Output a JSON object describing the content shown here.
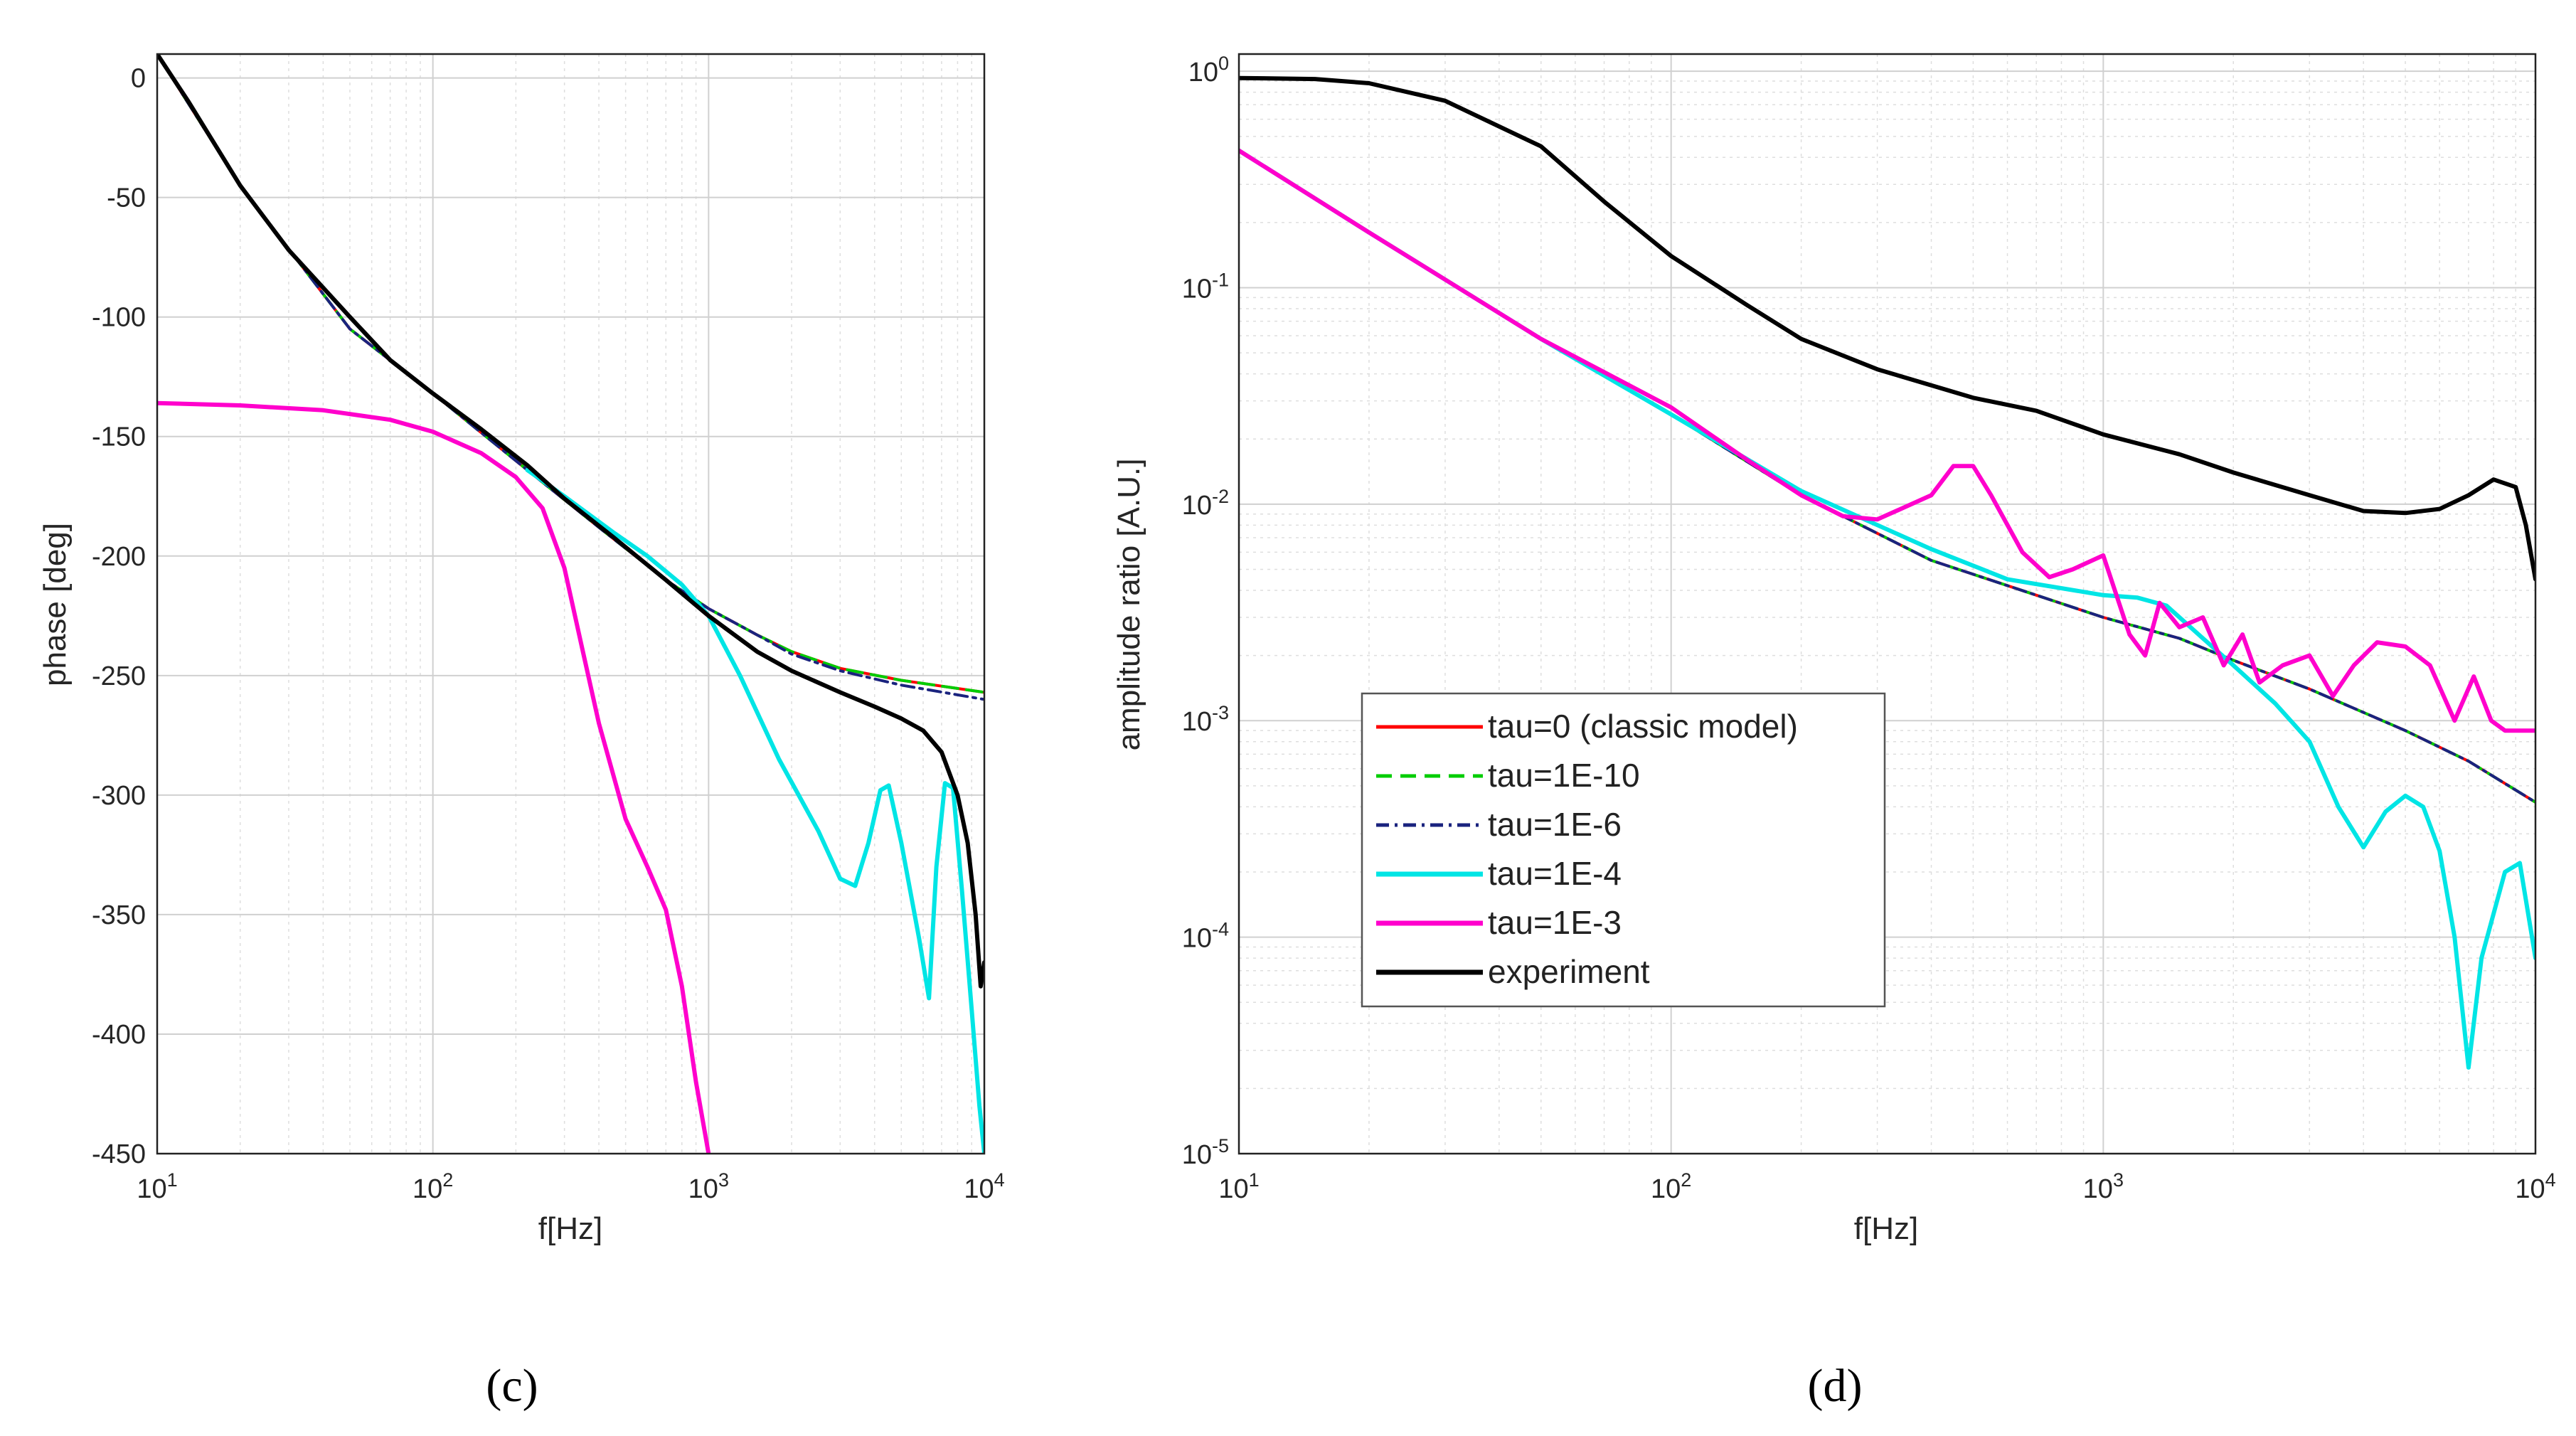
{
  "chart_data": [
    {
      "type": "line",
      "panel_label": "(c)",
      "xscale": "log",
      "xlim": [
        10,
        10000
      ],
      "ylim": [
        -450,
        10
      ],
      "xlabel": "f[Hz]",
      "ylabel": "phase [deg]",
      "grid": true,
      "x_tick_labels": [
        {
          "base": "10",
          "exp": "1"
        },
        {
          "base": "10",
          "exp": "2"
        },
        {
          "base": "10",
          "exp": "3"
        },
        {
          "base": "10",
          "exp": "4"
        }
      ],
      "y_ticks": [
        0,
        -50,
        -100,
        -150,
        -200,
        -250,
        -300,
        -350,
        -400,
        -450
      ],
      "series": [
        {
          "name": "tau=0 (classic model)",
          "color": "#ff0000",
          "dash": "solid",
          "points": [
            [
              10,
              10
            ],
            [
              20,
              -45
            ],
            [
              50,
              -105
            ],
            [
              100,
              -132
            ],
            [
              220,
              -164
            ],
            [
              400,
              -188
            ],
            [
              700,
              -210
            ],
            [
              1000,
              -222
            ],
            [
              1500,
              -233
            ],
            [
              2000,
              -240
            ],
            [
              3000,
              -247
            ],
            [
              5000,
              -252
            ],
            [
              10000,
              -257
            ]
          ]
        },
        {
          "name": "tau=1E-10",
          "color": "#00cc00",
          "dash": "dashed",
          "points": [
            [
              10,
              10
            ],
            [
              20,
              -45
            ],
            [
              50,
              -105
            ],
            [
              100,
              -132
            ],
            [
              220,
              -164
            ],
            [
              400,
              -188
            ],
            [
              700,
              -210
            ],
            [
              1000,
              -222
            ],
            [
              1500,
              -233
            ],
            [
              2000,
              -240
            ],
            [
              3000,
              -247
            ],
            [
              5000,
              -252
            ],
            [
              10000,
              -257
            ]
          ]
        },
        {
          "name": "tau=1E-6",
          "color": "#1a237e",
          "dash": "dashdot",
          "points": [
            [
              10,
              10
            ],
            [
              20,
              -45
            ],
            [
              50,
              -105
            ],
            [
              100,
              -132
            ],
            [
              220,
              -164
            ],
            [
              400,
              -188
            ],
            [
              700,
              -210
            ],
            [
              1000,
              -222
            ],
            [
              1500,
              -233
            ],
            [
              2000,
              -241
            ],
            [
              3000,
              -248
            ],
            [
              5000,
              -254
            ],
            [
              10000,
              -260
            ]
          ]
        },
        {
          "name": "tau=1E-4",
          "color": "#00e5e5",
          "dash": "solid",
          "points": [
            [
              220,
              -164
            ],
            [
              300,
              -175
            ],
            [
              450,
              -190
            ],
            [
              600,
              -200
            ],
            [
              800,
              -212
            ],
            [
              1000,
              -225
            ],
            [
              1300,
              -250
            ],
            [
              1800,
              -285
            ],
            [
              2500,
              -315
            ],
            [
              3000,
              -335
            ],
            [
              3400,
              -338
            ],
            [
              3800,
              -320
            ],
            [
              4200,
              -298
            ],
            [
              4500,
              -296
            ],
            [
              5000,
              -320
            ],
            [
              5800,
              -360
            ],
            [
              6300,
              -385
            ],
            [
              6700,
              -330
            ],
            [
              7200,
              -295
            ],
            [
              7700,
              -297
            ],
            [
              8300,
              -340
            ],
            [
              9000,
              -390
            ],
            [
              9600,
              -430
            ],
            [
              10000,
              -450
            ]
          ]
        },
        {
          "name": "tau=1E-3",
          "color": "#ff00cc",
          "dash": "solid",
          "points": [
            [
              10,
              -136
            ],
            [
              20,
              -137
            ],
            [
              40,
              -139
            ],
            [
              70,
              -143
            ],
            [
              100,
              -148
            ],
            [
              150,
              -157
            ],
            [
              200,
              -167
            ],
            [
              250,
              -180
            ],
            [
              300,
              -205
            ],
            [
              350,
              -240
            ],
            [
              400,
              -270
            ],
            [
              500,
              -310
            ],
            [
              600,
              -330
            ],
            [
              700,
              -348
            ],
            [
              800,
              -380
            ],
            [
              900,
              -420
            ],
            [
              1000,
              -450
            ]
          ]
        },
        {
          "name": "experiment",
          "color": "#000000",
          "dash": "solid",
          "points": [
            [
              10,
              10
            ],
            [
              13,
              -10
            ],
            [
              20,
              -45
            ],
            [
              30,
              -72
            ],
            [
              50,
              -100
            ],
            [
              70,
              -118
            ],
            [
              100,
              -132
            ],
            [
              150,
              -147
            ],
            [
              220,
              -162
            ],
            [
              300,
              -176
            ],
            [
              450,
              -192
            ],
            [
              700,
              -210
            ],
            [
              1000,
              -225
            ],
            [
              1500,
              -240
            ],
            [
              2000,
              -248
            ],
            [
              3000,
              -257
            ],
            [
              4000,
              -263
            ],
            [
              5000,
              -268
            ],
            [
              6000,
              -273
            ],
            [
              7000,
              -282
            ],
            [
              8000,
              -300
            ],
            [
              8700,
              -320
            ],
            [
              9300,
              -350
            ],
            [
              9700,
              -380
            ],
            [
              10000,
              -370
            ]
          ]
        }
      ]
    },
    {
      "type": "line",
      "panel_label": "(d)",
      "xscale": "log",
      "yscale": "log",
      "xlim": [
        10,
        10000
      ],
      "ylim": [
        1e-05,
        1.2
      ],
      "xlabel": "f[Hz]",
      "ylabel": "amplitude ratio  [A.U.]",
      "grid": true,
      "legend_position": "lower-left",
      "x_tick_labels": [
        {
          "base": "10",
          "exp": "1"
        },
        {
          "base": "10",
          "exp": "2"
        },
        {
          "base": "10",
          "exp": "3"
        },
        {
          "base": "10",
          "exp": "4"
        }
      ],
      "y_tick_labels": [
        {
          "value": 1,
          "base": "10",
          "exp": "0"
        },
        {
          "value": 0.1,
          "base": "10",
          "exp": "-1"
        },
        {
          "value": 0.01,
          "base": "10",
          "exp": "-2"
        },
        {
          "value": 0.001,
          "base": "10",
          "exp": "-3"
        },
        {
          "value": 0.0001,
          "base": "10",
          "exp": "-4"
        },
        {
          "value": 1e-05,
          "base": "10",
          "exp": "-5"
        }
      ],
      "series": [
        {
          "name": "tau=0 (classic model)",
          "color": "#ff0000",
          "dash": "solid",
          "points": [
            [
              10,
              0.43
            ],
            [
              20,
              0.18
            ],
            [
              50,
              0.058
            ],
            [
              100,
              0.026
            ],
            [
              200,
              0.011
            ],
            [
              400,
              0.0055
            ],
            [
              700,
              0.0038
            ],
            [
              1000,
              0.003
            ],
            [
              1500,
              0.0024
            ],
            [
              2000,
              0.0019
            ],
            [
              3000,
              0.0014
            ],
            [
              5000,
              0.0009
            ],
            [
              7000,
              0.00065
            ],
            [
              10000,
              0.00042
            ]
          ]
        },
        {
          "name": "tau=1E-10",
          "color": "#00cc00",
          "dash": "dashed",
          "points": [
            [
              10,
              0.43
            ],
            [
              20,
              0.18
            ],
            [
              50,
              0.058
            ],
            [
              100,
              0.026
            ],
            [
              200,
              0.011
            ],
            [
              400,
              0.0055
            ],
            [
              700,
              0.0038
            ],
            [
              1000,
              0.003
            ],
            [
              1500,
              0.0024
            ],
            [
              2000,
              0.0019
            ],
            [
              3000,
              0.0014
            ],
            [
              5000,
              0.0009
            ],
            [
              7000,
              0.00065
            ],
            [
              10000,
              0.00042
            ]
          ]
        },
        {
          "name": "tau=1E-6",
          "color": "#1a237e",
          "dash": "dashdot",
          "points": [
            [
              10,
              0.43
            ],
            [
              20,
              0.18
            ],
            [
              50,
              0.058
            ],
            [
              100,
              0.026
            ],
            [
              200,
              0.011
            ],
            [
              400,
              0.0055
            ],
            [
              700,
              0.0038
            ],
            [
              1000,
              0.003
            ],
            [
              1500,
              0.0024
            ],
            [
              2000,
              0.0019
            ],
            [
              3000,
              0.0014
            ],
            [
              5000,
              0.0009
            ],
            [
              7000,
              0.00065
            ],
            [
              10000,
              0.00042
            ]
          ]
        },
        {
          "name": "tau=1E-4",
          "color": "#00e5e5",
          "dash": "solid",
          "points": [
            [
              10,
              0.43
            ],
            [
              20,
              0.18
            ],
            [
              50,
              0.058
            ],
            [
              100,
              0.026
            ],
            [
              200,
              0.0115
            ],
            [
              400,
              0.0062
            ],
            [
              600,
              0.0045
            ],
            [
              1000,
              0.0038
            ],
            [
              1200,
              0.0037
            ],
            [
              1400,
              0.0034
            ],
            [
              1700,
              0.0024
            ],
            [
              2000,
              0.0018
            ],
            [
              2500,
              0.0012
            ],
            [
              3000,
              0.0008
            ],
            [
              3500,
              0.0004
            ],
            [
              4000,
              0.00026
            ],
            [
              4500,
              0.00038
            ],
            [
              5000,
              0.00045
            ],
            [
              5500,
              0.0004
            ],
            [
              6000,
              0.00025
            ],
            [
              6500,
              0.0001
            ],
            [
              7000,
              2.5e-05
            ],
            [
              7500,
              8e-05
            ],
            [
              8500,
              0.0002
            ],
            [
              9200,
              0.00022
            ],
            [
              10000,
              8e-05
            ]
          ]
        },
        {
          "name": "tau=1E-3",
          "color": "#ff00cc",
          "dash": "solid",
          "points": [
            [
              10,
              0.43
            ],
            [
              20,
              0.18
            ],
            [
              50,
              0.058
            ],
            [
              100,
              0.028
            ],
            [
              150,
              0.016
            ],
            [
              200,
              0.011
            ],
            [
              250,
              0.0088
            ],
            [
              300,
              0.0085
            ],
            [
              400,
              0.011
            ],
            [
              450,
              0.015
            ],
            [
              500,
              0.015
            ],
            [
              550,
              0.011
            ],
            [
              650,
              0.006
            ],
            [
              750,
              0.0046
            ],
            [
              850,
              0.005
            ],
            [
              1000,
              0.0058
            ],
            [
              1150,
              0.0025
            ],
            [
              1250,
              0.002
            ],
            [
              1350,
              0.0035
            ],
            [
              1500,
              0.0027
            ],
            [
              1700,
              0.003
            ],
            [
              1900,
              0.0018
            ],
            [
              2100,
              0.0025
            ],
            [
              2300,
              0.0015
            ],
            [
              2600,
              0.0018
            ],
            [
              3000,
              0.002
            ],
            [
              3400,
              0.0013
            ],
            [
              3800,
              0.0018
            ],
            [
              4300,
              0.0023
            ],
            [
              5000,
              0.0022
            ],
            [
              5700,
              0.0018
            ],
            [
              6500,
              0.001
            ],
            [
              7200,
              0.0016
            ],
            [
              7900,
              0.001
            ],
            [
              8500,
              0.0009
            ],
            [
              10000,
              0.0009
            ]
          ]
        },
        {
          "name": "experiment",
          "color": "#000000",
          "dash": "solid",
          "points": [
            [
              10,
              0.93
            ],
            [
              15,
              0.92
            ],
            [
              20,
              0.88
            ],
            [
              30,
              0.73
            ],
            [
              50,
              0.45
            ],
            [
              70,
              0.25
            ],
            [
              100,
              0.14
            ],
            [
              150,
              0.083
            ],
            [
              200,
              0.058
            ],
            [
              300,
              0.042
            ],
            [
              500,
              0.031
            ],
            [
              700,
              0.027
            ],
            [
              1000,
              0.021
            ],
            [
              1500,
              0.017
            ],
            [
              2000,
              0.014
            ],
            [
              3000,
              0.011
            ],
            [
              4000,
              0.0093
            ],
            [
              5000,
              0.0091
            ],
            [
              6000,
              0.0095
            ],
            [
              7000,
              0.011
            ],
            [
              8000,
              0.013
            ],
            [
              9000,
              0.012
            ],
            [
              9500,
              0.008
            ],
            [
              10000,
              0.0045
            ]
          ]
        }
      ]
    }
  ]
}
